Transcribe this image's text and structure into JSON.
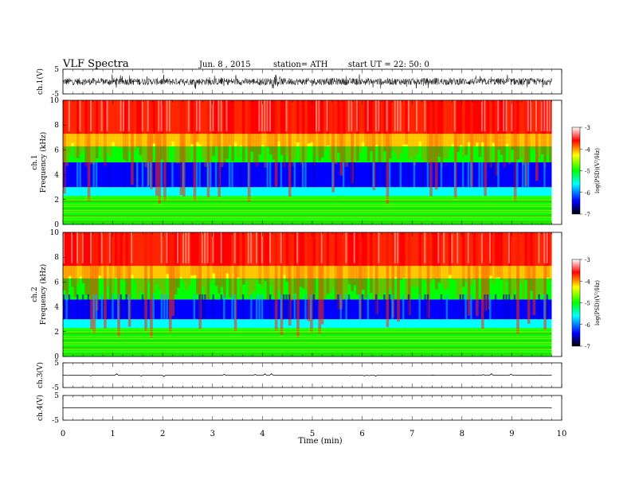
{
  "header": {
    "title": "VLF Spectra",
    "date": "Jun. 8 , 2015",
    "station": "station= ATH",
    "start": "start UT = 22: 50: 0"
  },
  "colors": {
    "waveform": "#000000",
    "colormap": [
      "#000000",
      "#0000ff",
      "#00ffff",
      "#00ff00",
      "#ffff00",
      "#ff0000",
      "#ffffff"
    ]
  },
  "chart_data": [
    {
      "type": "line",
      "panel": "ch1-waveform",
      "ylabel": "ch.1(V)",
      "yticks": [
        "5",
        "-5"
      ],
      "ylim": [
        -5,
        5
      ],
      "xlim": [
        0,
        10
      ],
      "description_of_values": "noise band roughly between -2 and +2 V across 0-9.8 min",
      "envelope": [
        -2,
        2
      ]
    },
    {
      "type": "heatmap",
      "panel": "ch1-spectrogram",
      "ylabel": "Frequency (kHz)",
      "channel_label": "ch.1",
      "yticks": [
        "0",
        "2",
        "4",
        "6",
        "8",
        "10"
      ],
      "ylim": [
        0,
        10
      ],
      "xlim": [
        0,
        10
      ],
      "data_end_min": 9.8,
      "colorbar": {
        "label": "log(PSD)(V²/Hz)",
        "ticks": [
          "-3",
          "-4",
          "-5",
          "-6",
          "-7"
        ],
        "range": [
          -7,
          -3
        ]
      },
      "bands_log_psd": [
        {
          "f_low": 0,
          "f_high": 2.3,
          "level": -5.2
        },
        {
          "f_low": 2.3,
          "f_high": 3.0,
          "level": -5.6
        },
        {
          "f_low": 3.0,
          "f_high": 5.0,
          "level": -6.3
        },
        {
          "f_low": 5.0,
          "f_high": 6.3,
          "level": -5.0
        },
        {
          "f_low": 6.3,
          "f_high": 7.3,
          "level": -4.3
        },
        {
          "f_low": 7.3,
          "f_high": 10,
          "level": -3.8
        }
      ]
    },
    {
      "type": "heatmap",
      "panel": "ch2-spectrogram",
      "ylabel": "Frequency (kHz)",
      "channel_label": "ch.2",
      "yticks": [
        "0",
        "2",
        "4",
        "6",
        "8",
        "10"
      ],
      "ylim": [
        0,
        10
      ],
      "xlim": [
        0,
        10
      ],
      "data_end_min": 9.8,
      "colorbar": {
        "label": "log(PSD)(V²/Hz)",
        "ticks": [
          "-3",
          "-4",
          "-5",
          "-6",
          "-7"
        ],
        "range": [
          -7,
          -3
        ]
      },
      "bands_log_psd": [
        {
          "f_low": 0,
          "f_high": 2.3,
          "level": -5.2
        },
        {
          "f_low": 2.3,
          "f_high": 3.0,
          "level": -5.5
        },
        {
          "f_low": 3.0,
          "f_high": 4.6,
          "level": -6.1
        },
        {
          "f_low": 4.6,
          "f_high": 6.3,
          "level": -4.8
        },
        {
          "f_low": 6.3,
          "f_high": 7.3,
          "level": -4.1
        },
        {
          "f_low": 7.3,
          "f_high": 10,
          "level": -3.7
        }
      ]
    },
    {
      "type": "line",
      "panel": "ch3-waveform",
      "ylabel": "ch.3(V)",
      "yticks": [
        "5",
        "-5"
      ],
      "ylim": [
        -5,
        5
      ],
      "xlim": [
        0,
        10
      ],
      "envelope": [
        -0.2,
        0.2
      ]
    },
    {
      "type": "line",
      "panel": "ch4-waveform",
      "ylabel": "ch.4(V)",
      "yticks": [
        "5",
        "-5"
      ],
      "ylim": [
        -5,
        5
      ],
      "xlim": [
        0,
        10
      ],
      "envelope": [
        0,
        0
      ]
    }
  ],
  "xaxis": {
    "label": "Time (min)",
    "ticks": [
      "0",
      "1",
      "2",
      "3",
      "4",
      "5",
      "6",
      "7",
      "8",
      "9",
      "10"
    ]
  }
}
